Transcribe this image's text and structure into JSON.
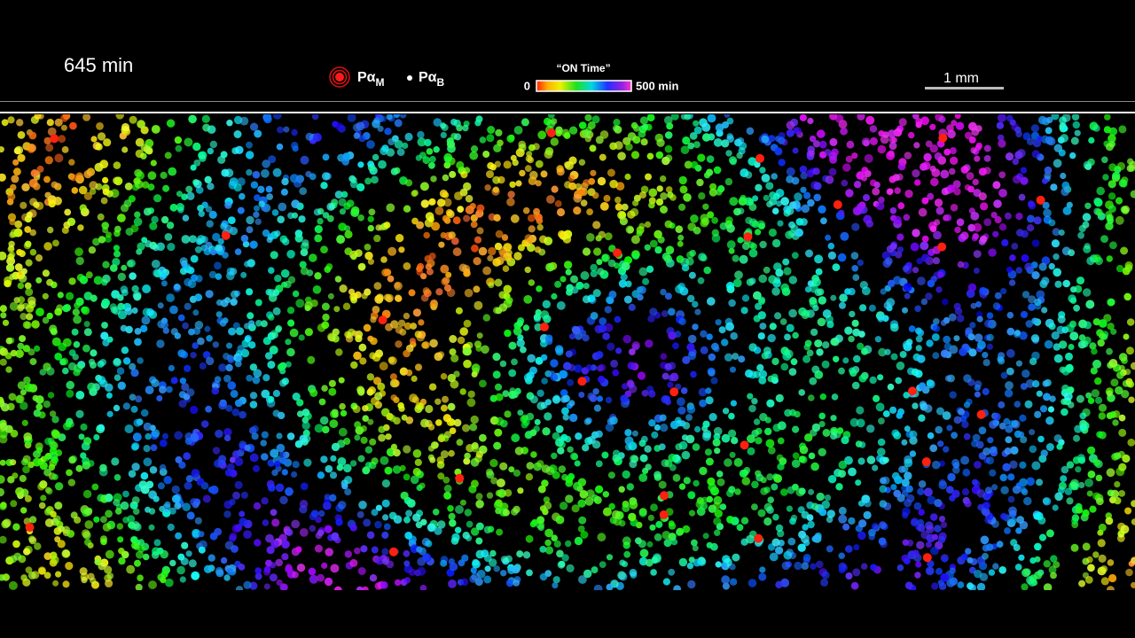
{
  "timestamp": "645 min",
  "legend": {
    "items": [
      {
        "label": "Pα",
        "subscript": "M"
      },
      {
        "label": "Pα",
        "subscript": "B"
      }
    ]
  },
  "colorbar": {
    "title": "“ON Time”",
    "min_label": "0",
    "max_label": "500 min"
  },
  "scale_bar": {
    "label": "1 mm"
  }
}
